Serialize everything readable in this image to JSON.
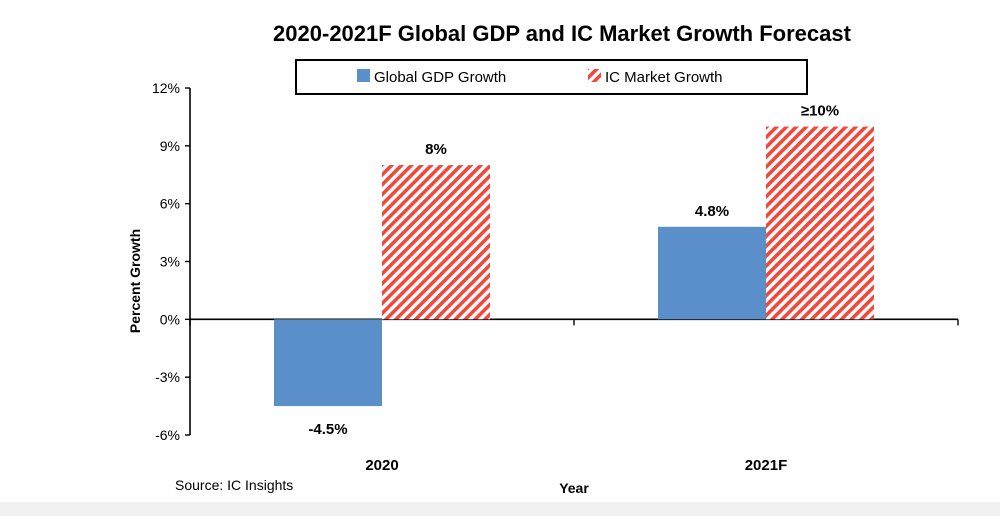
{
  "chart_data": {
    "type": "bar",
    "title": "2020-2021F Global GDP and IC Market Growth Forecast",
    "xlabel": "Year",
    "ylabel": "Percent Growth",
    "categories": [
      "2020",
      "2021F"
    ],
    "series": [
      {
        "name": "Global GDP Growth",
        "values": [
          -4.5,
          4.8
        ],
        "labels": [
          "-4.5%",
          "4.8%"
        ],
        "color": "#5b8fc9",
        "pattern": "solid"
      },
      {
        "name": "IC Market Growth",
        "values": [
          8,
          10
        ],
        "labels": [
          "8%",
          "≥10%"
        ],
        "color": "#f0493b",
        "pattern": "diagonal-stripes"
      }
    ],
    "ylim": [
      -6,
      12
    ],
    "yticks": [
      12,
      9,
      6,
      3,
      0,
      -3,
      -6
    ],
    "ytick_labels": [
      "12%",
      "9%",
      "6%",
      "3%",
      "0%",
      "-3%",
      "-6%"
    ],
    "grid": false,
    "legend_position": "top-center",
    "source": "Source: IC Insights"
  }
}
